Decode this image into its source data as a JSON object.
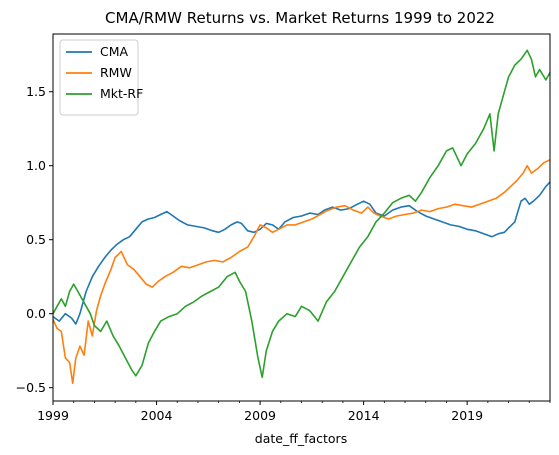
{
  "chart_data": {
    "type": "line",
    "title": "CMA/RMW Returns vs. Market Returns 1999 to 2022",
    "xlabel": "date_ff_factors",
    "ylabel": "",
    "xlim": [
      1999.0,
      2023.0
    ],
    "ylim": [
      -0.59,
      1.89
    ],
    "x_ticks": [
      1999,
      2004,
      2009,
      2014,
      2019
    ],
    "x_tick_labels": [
      "1999",
      "2004",
      "2009",
      "2014",
      "2019"
    ],
    "y_ticks": [
      -0.5,
      0.0,
      0.5,
      1.0,
      1.5
    ],
    "y_tick_labels": [
      "−0.5",
      "0.0",
      "0.5",
      "1.0",
      "1.5"
    ],
    "grid": false,
    "legend_position": "top-left",
    "series": [
      {
        "name": "CMA",
        "color": "#1f77b4",
        "points": [
          [
            1999.0,
            -0.02
          ],
          [
            1999.3,
            -0.05
          ],
          [
            1999.6,
            0.0
          ],
          [
            1999.9,
            -0.03
          ],
          [
            2000.1,
            -0.07
          ],
          [
            2000.3,
            0.0
          ],
          [
            2000.6,
            0.15
          ],
          [
            2000.9,
            0.25
          ],
          [
            2001.2,
            0.32
          ],
          [
            2001.5,
            0.38
          ],
          [
            2001.8,
            0.43
          ],
          [
            2002.1,
            0.47
          ],
          [
            2002.4,
            0.5
          ],
          [
            2002.7,
            0.52
          ],
          [
            2003.0,
            0.57
          ],
          [
            2003.3,
            0.62
          ],
          [
            2003.6,
            0.64
          ],
          [
            2003.9,
            0.65
          ],
          [
            2004.2,
            0.67
          ],
          [
            2004.5,
            0.69
          ],
          [
            2004.8,
            0.66
          ],
          [
            2005.1,
            0.63
          ],
          [
            2005.5,
            0.6
          ],
          [
            2005.9,
            0.59
          ],
          [
            2006.3,
            0.58
          ],
          [
            2006.7,
            0.56
          ],
          [
            2007.0,
            0.55
          ],
          [
            2007.3,
            0.57
          ],
          [
            2007.6,
            0.6
          ],
          [
            2007.9,
            0.62
          ],
          [
            2008.1,
            0.61
          ],
          [
            2008.4,
            0.56
          ],
          [
            2008.7,
            0.55
          ],
          [
            2009.0,
            0.57
          ],
          [
            2009.3,
            0.61
          ],
          [
            2009.6,
            0.6
          ],
          [
            2009.9,
            0.57
          ],
          [
            2010.2,
            0.62
          ],
          [
            2010.6,
            0.65
          ],
          [
            2011.0,
            0.66
          ],
          [
            2011.4,
            0.68
          ],
          [
            2011.8,
            0.67
          ],
          [
            2012.1,
            0.7
          ],
          [
            2012.5,
            0.72
          ],
          [
            2012.9,
            0.7
          ],
          [
            2013.3,
            0.71
          ],
          [
            2013.7,
            0.74
          ],
          [
            2014.0,
            0.76
          ],
          [
            2014.3,
            0.74
          ],
          [
            2014.6,
            0.68
          ],
          [
            2015.0,
            0.66
          ],
          [
            2015.4,
            0.7
          ],
          [
            2015.8,
            0.72
          ],
          [
            2016.2,
            0.73
          ],
          [
            2016.6,
            0.69
          ],
          [
            2017.0,
            0.66
          ],
          [
            2017.4,
            0.64
          ],
          [
            2017.8,
            0.62
          ],
          [
            2018.2,
            0.6
          ],
          [
            2018.6,
            0.59
          ],
          [
            2019.0,
            0.57
          ],
          [
            2019.4,
            0.56
          ],
          [
            2019.8,
            0.54
          ],
          [
            2020.2,
            0.52
          ],
          [
            2020.5,
            0.54
          ],
          [
            2020.8,
            0.55
          ],
          [
            2021.0,
            0.58
          ],
          [
            2021.3,
            0.62
          ],
          [
            2021.6,
            0.76
          ],
          [
            2021.8,
            0.78
          ],
          [
            2022.0,
            0.74
          ],
          [
            2022.2,
            0.76
          ],
          [
            2022.5,
            0.8
          ],
          [
            2022.8,
            0.86
          ],
          [
            2023.0,
            0.89
          ]
        ]
      },
      {
        "name": "RMW",
        "color": "#ff7f0e",
        "points": [
          [
            1999.0,
            -0.04
          ],
          [
            1999.2,
            -0.1
          ],
          [
            1999.4,
            -0.12
          ],
          [
            1999.6,
            -0.3
          ],
          [
            1999.8,
            -0.33
          ],
          [
            1999.95,
            -0.47
          ],
          [
            2000.1,
            -0.3
          ],
          [
            2000.3,
            -0.22
          ],
          [
            2000.5,
            -0.28
          ],
          [
            2000.7,
            -0.05
          ],
          [
            2000.9,
            -0.15
          ],
          [
            2001.1,
            0.02
          ],
          [
            2001.3,
            0.12
          ],
          [
            2001.5,
            0.2
          ],
          [
            2001.8,
            0.3
          ],
          [
            2002.0,
            0.38
          ],
          [
            2002.3,
            0.42
          ],
          [
            2002.6,
            0.33
          ],
          [
            2002.9,
            0.3
          ],
          [
            2003.2,
            0.25
          ],
          [
            2003.5,
            0.2
          ],
          [
            2003.8,
            0.18
          ],
          [
            2004.1,
            0.22
          ],
          [
            2004.4,
            0.25
          ],
          [
            2004.8,
            0.28
          ],
          [
            2005.2,
            0.32
          ],
          [
            2005.6,
            0.31
          ],
          [
            2006.0,
            0.33
          ],
          [
            2006.4,
            0.35
          ],
          [
            2006.8,
            0.36
          ],
          [
            2007.2,
            0.35
          ],
          [
            2007.6,
            0.38
          ],
          [
            2008.0,
            0.42
          ],
          [
            2008.4,
            0.45
          ],
          [
            2008.7,
            0.52
          ],
          [
            2009.0,
            0.6
          ],
          [
            2009.3,
            0.58
          ],
          [
            2009.6,
            0.55
          ],
          [
            2009.9,
            0.57
          ],
          [
            2010.3,
            0.6
          ],
          [
            2010.7,
            0.6
          ],
          [
            2011.1,
            0.62
          ],
          [
            2011.5,
            0.64
          ],
          [
            2011.9,
            0.67
          ],
          [
            2012.3,
            0.7
          ],
          [
            2012.7,
            0.72
          ],
          [
            2013.1,
            0.73
          ],
          [
            2013.5,
            0.7
          ],
          [
            2013.9,
            0.68
          ],
          [
            2014.2,
            0.72
          ],
          [
            2014.5,
            0.68
          ],
          [
            2014.8,
            0.66
          ],
          [
            2015.2,
            0.64
          ],
          [
            2015.6,
            0.66
          ],
          [
            2016.0,
            0.67
          ],
          [
            2016.4,
            0.68
          ],
          [
            2016.8,
            0.7
          ],
          [
            2017.2,
            0.69
          ],
          [
            2017.6,
            0.71
          ],
          [
            2018.0,
            0.72
          ],
          [
            2018.4,
            0.74
          ],
          [
            2018.8,
            0.73
          ],
          [
            2019.2,
            0.72
          ],
          [
            2019.6,
            0.74
          ],
          [
            2020.0,
            0.76
          ],
          [
            2020.4,
            0.78
          ],
          [
            2020.8,
            0.82
          ],
          [
            2021.1,
            0.86
          ],
          [
            2021.4,
            0.9
          ],
          [
            2021.7,
            0.95
          ],
          [
            2021.9,
            1.0
          ],
          [
            2022.1,
            0.95
          ],
          [
            2022.4,
            0.98
          ],
          [
            2022.7,
            1.02
          ],
          [
            2023.0,
            1.04
          ]
        ]
      },
      {
        "name": "Mkt-RF",
        "color": "#2ca02c",
        "points": [
          [
            1999.0,
            0.0
          ],
          [
            1999.2,
            0.05
          ],
          [
            1999.4,
            0.1
          ],
          [
            1999.6,
            0.05
          ],
          [
            1999.8,
            0.15
          ],
          [
            2000.0,
            0.2
          ],
          [
            2000.2,
            0.15
          ],
          [
            2000.4,
            0.1
          ],
          [
            2000.6,
            0.05
          ],
          [
            2000.8,
            0.0
          ],
          [
            2001.0,
            -0.08
          ],
          [
            2001.3,
            -0.12
          ],
          [
            2001.6,
            -0.05
          ],
          [
            2001.9,
            -0.15
          ],
          [
            2002.2,
            -0.22
          ],
          [
            2002.5,
            -0.3
          ],
          [
            2002.8,
            -0.38
          ],
          [
            2003.0,
            -0.42
          ],
          [
            2003.3,
            -0.35
          ],
          [
            2003.6,
            -0.2
          ],
          [
            2003.9,
            -0.12
          ],
          [
            2004.2,
            -0.05
          ],
          [
            2004.6,
            -0.02
          ],
          [
            2005.0,
            0.0
          ],
          [
            2005.4,
            0.05
          ],
          [
            2005.8,
            0.08
          ],
          [
            2006.2,
            0.12
          ],
          [
            2006.6,
            0.15
          ],
          [
            2007.0,
            0.18
          ],
          [
            2007.4,
            0.25
          ],
          [
            2007.8,
            0.28
          ],
          [
            2008.0,
            0.22
          ],
          [
            2008.3,
            0.15
          ],
          [
            2008.6,
            -0.05
          ],
          [
            2008.9,
            -0.3
          ],
          [
            2009.1,
            -0.43
          ],
          [
            2009.3,
            -0.25
          ],
          [
            2009.6,
            -0.12
          ],
          [
            2009.9,
            -0.05
          ],
          [
            2010.3,
            0.0
          ],
          [
            2010.7,
            -0.02
          ],
          [
            2011.0,
            0.05
          ],
          [
            2011.4,
            0.02
          ],
          [
            2011.8,
            -0.05
          ],
          [
            2012.2,
            0.08
          ],
          [
            2012.6,
            0.15
          ],
          [
            2013.0,
            0.25
          ],
          [
            2013.4,
            0.35
          ],
          [
            2013.8,
            0.45
          ],
          [
            2014.2,
            0.52
          ],
          [
            2014.6,
            0.62
          ],
          [
            2015.0,
            0.68
          ],
          [
            2015.4,
            0.75
          ],
          [
            2015.8,
            0.78
          ],
          [
            2016.2,
            0.8
          ],
          [
            2016.5,
            0.76
          ],
          [
            2016.8,
            0.82
          ],
          [
            2017.2,
            0.92
          ],
          [
            2017.6,
            1.0
          ],
          [
            2018.0,
            1.1
          ],
          [
            2018.3,
            1.12
          ],
          [
            2018.7,
            1.0
          ],
          [
            2019.0,
            1.08
          ],
          [
            2019.4,
            1.15
          ],
          [
            2019.8,
            1.25
          ],
          [
            2020.1,
            1.35
          ],
          [
            2020.3,
            1.1
          ],
          [
            2020.5,
            1.35
          ],
          [
            2020.8,
            1.5
          ],
          [
            2021.0,
            1.6
          ],
          [
            2021.3,
            1.68
          ],
          [
            2021.6,
            1.72
          ],
          [
            2021.9,
            1.78
          ],
          [
            2022.1,
            1.72
          ],
          [
            2022.3,
            1.6
          ],
          [
            2022.5,
            1.65
          ],
          [
            2022.8,
            1.58
          ],
          [
            2023.0,
            1.63
          ]
        ]
      }
    ]
  }
}
